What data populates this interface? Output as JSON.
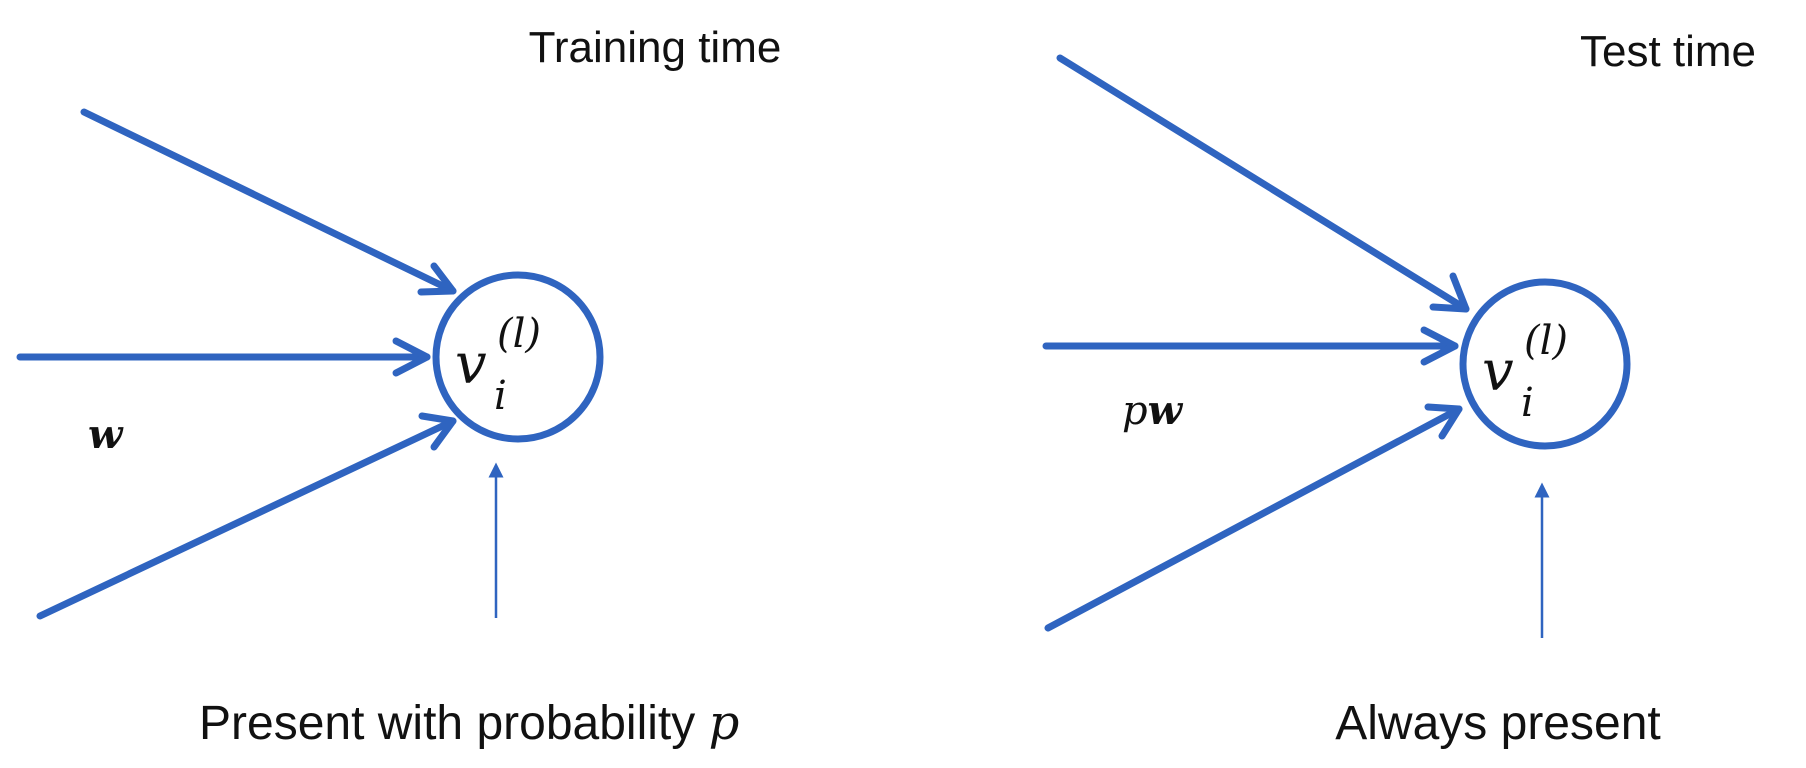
{
  "colors": {
    "edge": "#2f64c0",
    "node": "#2f64c0",
    "text": "#111111"
  },
  "panels": {
    "training": {
      "title": "Training time",
      "node": {
        "symbol": "v",
        "subscript": "i",
        "superscript": "(l)"
      },
      "weight_label": "w",
      "caption": "Present with probability ",
      "caption_var": "p"
    },
    "test": {
      "title": "Test time",
      "node": {
        "symbol": "v",
        "subscript": "i",
        "superscript": "(l)"
      },
      "weight_label_prefix": "p",
      "weight_label": "w",
      "caption": "Always present"
    }
  }
}
